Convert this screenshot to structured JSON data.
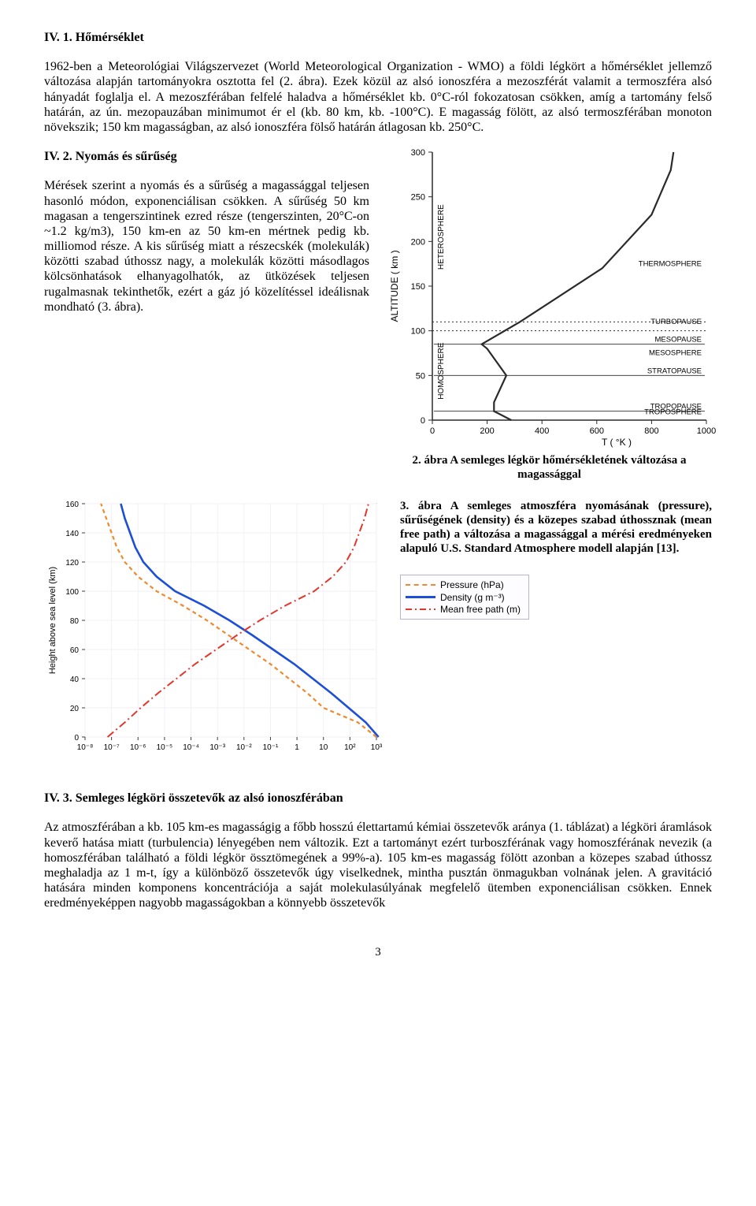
{
  "section1": {
    "heading": "IV. 1. Hőmérséklet",
    "para": "1962-ben a Meteorológiai Világszervezet (World Meteorological Organization - WMO) a földi légkört a hőmérséklet jellemző változása alapján tartományokra osztotta fel (2. ábra). Ezek közül az alsó ionoszféra a mezoszférát valamit a termoszféra alsó hányadát foglalja el. A mezoszférában felfelé haladva a hőmérséklet kb. 0°C-ról fokozatosan csökken, amíg a tartomány felső határán, az ún. mezopauzában minimumot ér el (kb. 80 km, kb. -100°C). E magasság fölött, az alsó termoszférában monoton növekszik; 150 km magasságban, az alsó ionoszféra fölső határán átlagosan kb. 250°C."
  },
  "section2": {
    "heading": "IV. 2. Nyomás és sűrűség",
    "para": "Mérések szerint a nyomás és a sűrűség a magassággal teljesen hasonló módon, exponenciálisan csökken. A sűrűség 50 km magasan a tengerszintinek ezred része (tengerszinten, 20°C-on ~1.2 kg/m3), 150 km-en az 50 km-en mértnek pedig kb. milliomod része. A kis sűrűség miatt a részecskék (molekulák) közötti szabad úthossz nagy, a molekulák közötti másodlagos kölcsönhatások elhanyagolhatók, az ütközések teljesen rugalmasnak tekinthetők, ezért a gáz jó közelítéssel ideálisnak mondható (3. ábra)."
  },
  "fig2": {
    "caption": "2. ábra A semleges légkör hőmérsékletének változása a magassággal",
    "ylabel": "ALTITUDE  ( km )",
    "xlabel": "T  ( °K )",
    "xticks": [
      "0",
      "200",
      "400",
      "600",
      "800",
      "1000"
    ],
    "yticks": [
      "0",
      "50",
      "100",
      "150",
      "200",
      "250",
      "300"
    ],
    "left_labels": [
      "HOMOSPHERE",
      "HETEROSPHERE"
    ],
    "right_labels": [
      "THERMOSPHERE",
      "TURBOPAUSE",
      "MESOSPHERE",
      "MESOPAUSE",
      "STRATOPAUSE",
      "TROPOSPHERE",
      "TROPOPAUSE"
    ],
    "colors": {
      "axis": "#2a2a2a",
      "line": "#2a2a2a"
    },
    "curve": [
      [
        288,
        0
      ],
      [
        225,
        10
      ],
      [
        225,
        20
      ],
      [
        270,
        50
      ],
      [
        200,
        80
      ],
      [
        180,
        85
      ],
      [
        320,
        110
      ],
      [
        620,
        170
      ],
      [
        800,
        230
      ],
      [
        870,
        280
      ],
      [
        880,
        300
      ]
    ]
  },
  "fig3": {
    "caption": "3. ábra A semleges atmoszféra nyomásának (pressure), sűrűségének (density) és a közepes szabad úthossznak (mean free path) a változása a magassággal a mérési eredményeken alapuló U.S. Standard Atmosphere modell alapján [13].",
    "ylabel": "Height above sea level (km)",
    "yticks": [
      "0",
      "20",
      "40",
      "60",
      "80",
      "100",
      "120",
      "140",
      "160"
    ],
    "xticks": [
      "10⁻⁸",
      "10⁻⁷",
      "10⁻⁶",
      "10⁻⁵",
      "10⁻⁴",
      "10⁻³",
      "10⁻²",
      "10⁻¹",
      "1",
      "10",
      "10²",
      "10³"
    ],
    "legend": {
      "pressure": "Pressure (hPa)",
      "density": "Density (g m⁻³)",
      "mfp": "Mean free path (m)"
    },
    "colors": {
      "pressure": "#ef8a2c",
      "density": "#1d4fd6",
      "mfp": "#e4352b",
      "axis": "#3d3d3d",
      "grid": "#f2f0f6"
    },
    "pressure_curve": [
      [
        3,
        0
      ],
      [
        2.3,
        10
      ],
      [
        1,
        20
      ],
      [
        0.4,
        30
      ],
      [
        -0.3,
        40
      ],
      [
        -1,
        50
      ],
      [
        -1.8,
        60
      ],
      [
        -2.6,
        70
      ],
      [
        -3.4,
        80
      ],
      [
        -4.3,
        90
      ],
      [
        -5.3,
        100
      ],
      [
        -6,
        110
      ],
      [
        -6.5,
        120
      ],
      [
        -6.8,
        130
      ],
      [
        -7,
        140
      ],
      [
        -7.2,
        150
      ],
      [
        -7.4,
        160
      ]
    ],
    "density_curve": [
      [
        3.08,
        0
      ],
      [
        2.6,
        10
      ],
      [
        1.95,
        20
      ],
      [
        1.3,
        30
      ],
      [
        0.6,
        40
      ],
      [
        -0.1,
        50
      ],
      [
        -0.9,
        60
      ],
      [
        -1.7,
        70
      ],
      [
        -2.55,
        80
      ],
      [
        -3.5,
        90
      ],
      [
        -4.6,
        100
      ],
      [
        -5.3,
        110
      ],
      [
        -5.8,
        120
      ],
      [
        -6.1,
        130
      ],
      [
        -6.3,
        140
      ],
      [
        -6.5,
        150
      ],
      [
        -6.65,
        160
      ]
    ],
    "mfp_curve": [
      [
        -7.15,
        0
      ],
      [
        -6.5,
        10
      ],
      [
        -5.9,
        20
      ],
      [
        -5.25,
        30
      ],
      [
        -4.55,
        40
      ],
      [
        -3.85,
        50
      ],
      [
        -3.05,
        60
      ],
      [
        -2.25,
        70
      ],
      [
        -1.4,
        80
      ],
      [
        -0.45,
        90
      ],
      [
        0.65,
        100
      ],
      [
        1.35,
        110
      ],
      [
        1.85,
        120
      ],
      [
        2.15,
        130
      ],
      [
        2.35,
        140
      ],
      [
        2.55,
        150
      ],
      [
        2.7,
        160
      ]
    ]
  },
  "section3": {
    "heading": "IV. 3. Semleges légköri összetevők az alsó ionoszférában",
    "para": "Az atmoszférában a kb. 105 km-es magasságig a főbb hosszú élettartamú kémiai összetevők aránya (1. táblázat) a légköri áramlások keverő hatása miatt (turbulencia) lényegében nem változik. Ezt a tartományt ezért turboszférának vagy homoszférának nevezik (a homoszférában található a földi légkör össztömegének a 99%-a). 105 km-es magasság fölött azonban a közepes szabad úthossz meghaladja az 1 m-t, így a különböző összetevők úgy viselkednek, mintha pusztán önmagukban volnának jelen. A gravitáció hatására minden komponens koncentrációja a saját molekulasúlyának megfelelő ütemben exponenciálisan csökken. Ennek eredményeképpen nagyobb magasságokban a könnyebb összetevők"
  },
  "page": "3"
}
